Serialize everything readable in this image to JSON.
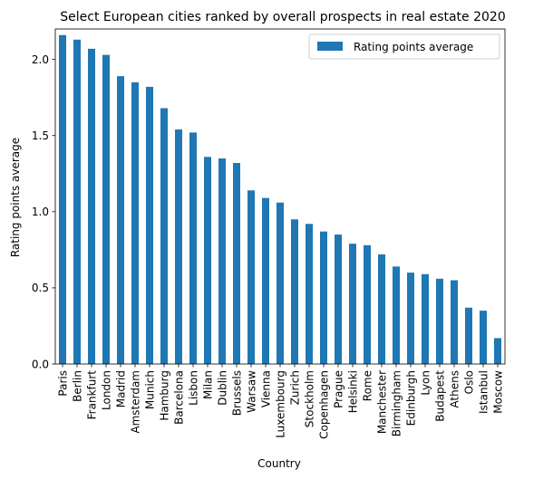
{
  "chart_data": {
    "type": "bar",
    "title": "Select European cities ranked by overall prospects in real estate 2020",
    "xlabel": "Country",
    "ylabel": "Rating points average",
    "ylim": [
      0,
      2.2
    ],
    "yticks": [
      "0.0",
      "0.5",
      "1.0",
      "1.5",
      "2.0"
    ],
    "grid": false,
    "legend_position": "top-right",
    "categories": [
      "Paris",
      "Berlin",
      "Frankfurt",
      "London",
      "Madrid",
      "Amsterdam",
      "Munich",
      "Hamburg",
      "Barcelona",
      "Lisbon",
      "Milan",
      "Dublin",
      "Brussels",
      "Warsaw",
      "Vienna",
      "Luxembourg",
      "Zurich",
      "Stockholm",
      "Copenhagen",
      "Prague",
      "Helsinki",
      "Rome",
      "Manchester",
      "Birmingham",
      "Edinburgh",
      "Lyon",
      "Budapest",
      "Athens",
      "Oslo",
      "Istanbul",
      "Moscow"
    ],
    "series": [
      {
        "name": "Rating points average",
        "color": "#1f77b4",
        "values": [
          2.16,
          2.13,
          2.07,
          2.03,
          1.89,
          1.85,
          1.82,
          1.68,
          1.54,
          1.52,
          1.36,
          1.35,
          1.32,
          1.14,
          1.09,
          1.06,
          0.95,
          0.92,
          0.87,
          0.85,
          0.79,
          0.78,
          0.72,
          0.64,
          0.6,
          0.59,
          0.56,
          0.55,
          0.37,
          0.35,
          0.17
        ]
      }
    ]
  }
}
